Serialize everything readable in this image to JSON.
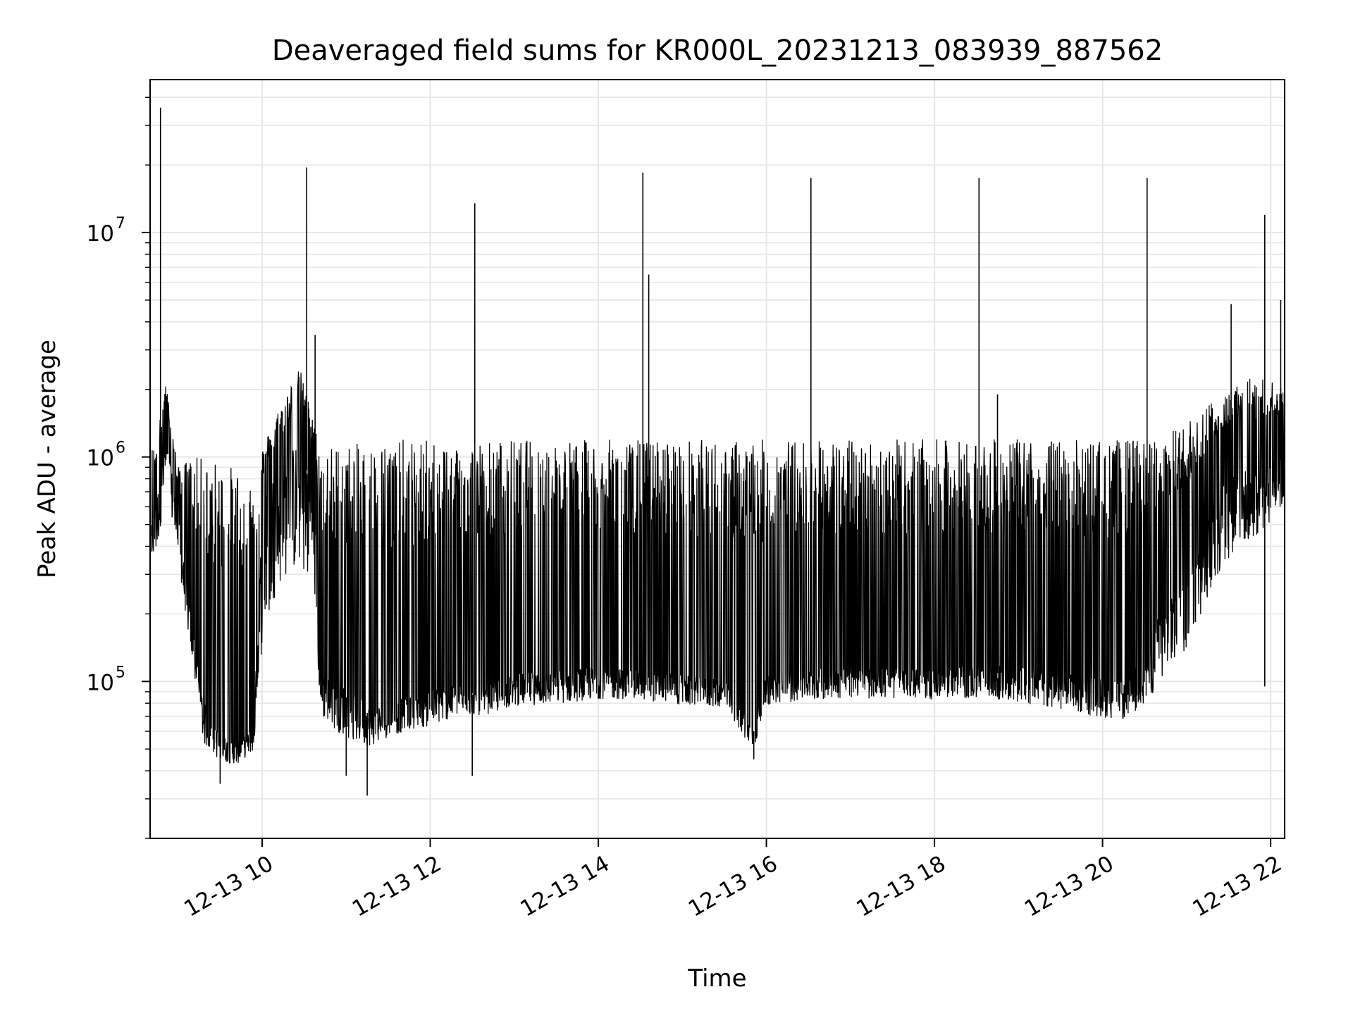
{
  "chart_data": {
    "type": "line",
    "title": "Deaveraged field sums for KR000L_20231213_083939_887562",
    "xlabel": "Time",
    "ylabel": "Peak ADU - average",
    "xscale": "time",
    "yscale": "log",
    "xlim": [
      "12-13 08:40",
      "12-13 22:10"
    ],
    "ylim": [
      20000,
      48000000
    ],
    "grid": true,
    "line_color": "#000000",
    "grid_color": "#e6e6e6",
    "x_ticks": [
      {
        "value": "12-13 10",
        "hour": 10
      },
      {
        "value": "12-13 12",
        "hour": 12
      },
      {
        "value": "12-13 14",
        "hour": 14
      },
      {
        "value": "12-13 16",
        "hour": 16
      },
      {
        "value": "12-13 18",
        "hour": 18
      },
      {
        "value": "12-13 20",
        "hour": 20
      },
      {
        "value": "12-13 22",
        "hour": 22
      }
    ],
    "y_ticks": [
      {
        "value": 100000,
        "base": "10",
        "exp": "5"
      },
      {
        "value": 1000000,
        "base": "10",
        "exp": "6"
      },
      {
        "value": 10000000,
        "base": "10",
        "exp": "7"
      }
    ],
    "series": [
      {
        "x_hours": [
          8.68,
          8.75,
          8.85,
          9.0,
          9.15,
          9.3,
          9.5,
          9.7,
          9.9,
          10.0,
          10.15,
          10.3,
          10.45,
          10.6,
          10.7,
          10.9,
          11.1,
          11.3,
          11.5,
          11.8,
          12.0,
          12.2,
          12.4,
          12.6,
          12.8,
          13.0,
          13.5,
          14.0,
          14.5,
          15.0,
          15.5,
          15.85,
          16.0,
          16.5,
          17.0,
          17.5,
          18.0,
          18.5,
          19.0,
          19.5,
          20.0,
          20.3,
          20.6,
          21.0,
          21.3,
          21.6,
          21.8,
          22.0,
          22.18
        ],
        "y_baseline": [
          450000,
          600000,
          1200000,
          500000,
          180000,
          75000,
          55000,
          50000,
          60000,
          450000,
          700000,
          800000,
          900000,
          850000,
          100000,
          90000,
          80000,
          70000,
          75000,
          80000,
          85000,
          88000,
          90000,
          85000,
          95000,
          100000,
          105000,
          108000,
          105000,
          100000,
          95000,
          60000,
          100000,
          105000,
          110000,
          108000,
          105000,
          110000,
          108000,
          100000,
          95000,
          90000,
          150000,
          300000,
          500000,
          800000,
          700000,
          900000,
          1000000
        ],
        "y_upper": [
          1100000,
          1200000,
          2200000,
          900000,
          1000000,
          1000000,
          950000,
          900000,
          900000,
          1100000,
          1500000,
          2000000,
          2500000,
          1500000,
          1100000,
          1150000,
          1150000,
          1150000,
          1200000,
          1200000,
          1200000,
          1200000,
          1200000,
          1200000,
          1200000,
          1200000,
          1200000,
          1200000,
          1200000,
          1200000,
          1200000,
          1200000,
          1200000,
          1200000,
          1200000,
          1200000,
          1200000,
          1200000,
          1200000,
          1200000,
          1200000,
          1200000,
          1200000,
          1400000,
          1800000,
          2200000,
          2300000,
          2200000,
          2000000
        ],
        "y_lower": [
          300000,
          300000,
          600000,
          300000,
          120000,
          45000,
          40000,
          40000,
          45000,
          90000,
          150000,
          200000,
          200000,
          150000,
          60000,
          50000,
          45000,
          45000,
          50000,
          55000,
          55000,
          60000,
          65000,
          65000,
          65000,
          70000,
          70000,
          75000,
          75000,
          70000,
          70000,
          45000,
          70000,
          75000,
          75000,
          75000,
          75000,
          75000,
          70000,
          65000,
          60000,
          60000,
          70000,
          100000,
          200000,
          300000,
          350000,
          400000,
          500000
        ],
        "spikes": [
          {
            "x_hour": 8.79,
            "y": 36000000
          },
          {
            "x_hour": 10.53,
            "y": 19500000
          },
          {
            "x_hour": 10.63,
            "y": 3500000
          },
          {
            "x_hour": 12.53,
            "y": 13500000
          },
          {
            "x_hour": 14.53,
            "y": 18500000
          },
          {
            "x_hour": 14.6,
            "y": 6500000
          },
          {
            "x_hour": 16.53,
            "y": 17500000
          },
          {
            "x_hour": 18.53,
            "y": 17500000
          },
          {
            "x_hour": 18.75,
            "y": 1900000
          },
          {
            "x_hour": 20.53,
            "y": 17500000
          },
          {
            "x_hour": 21.53,
            "y": 4800000
          },
          {
            "x_hour": 21.93,
            "y": 12000000
          },
          {
            "x_hour": 22.12,
            "y": 5000000
          }
        ],
        "dips": [
          {
            "x_hour": 9.5,
            "y": 35000
          },
          {
            "x_hour": 11.0,
            "y": 38000
          },
          {
            "x_hour": 11.25,
            "y": 31000
          },
          {
            "x_hour": 12.5,
            "y": 38000
          },
          {
            "x_hour": 15.85,
            "y": 45000
          },
          {
            "x_hour": 21.93,
            "y": 95000
          }
        ]
      }
    ]
  }
}
